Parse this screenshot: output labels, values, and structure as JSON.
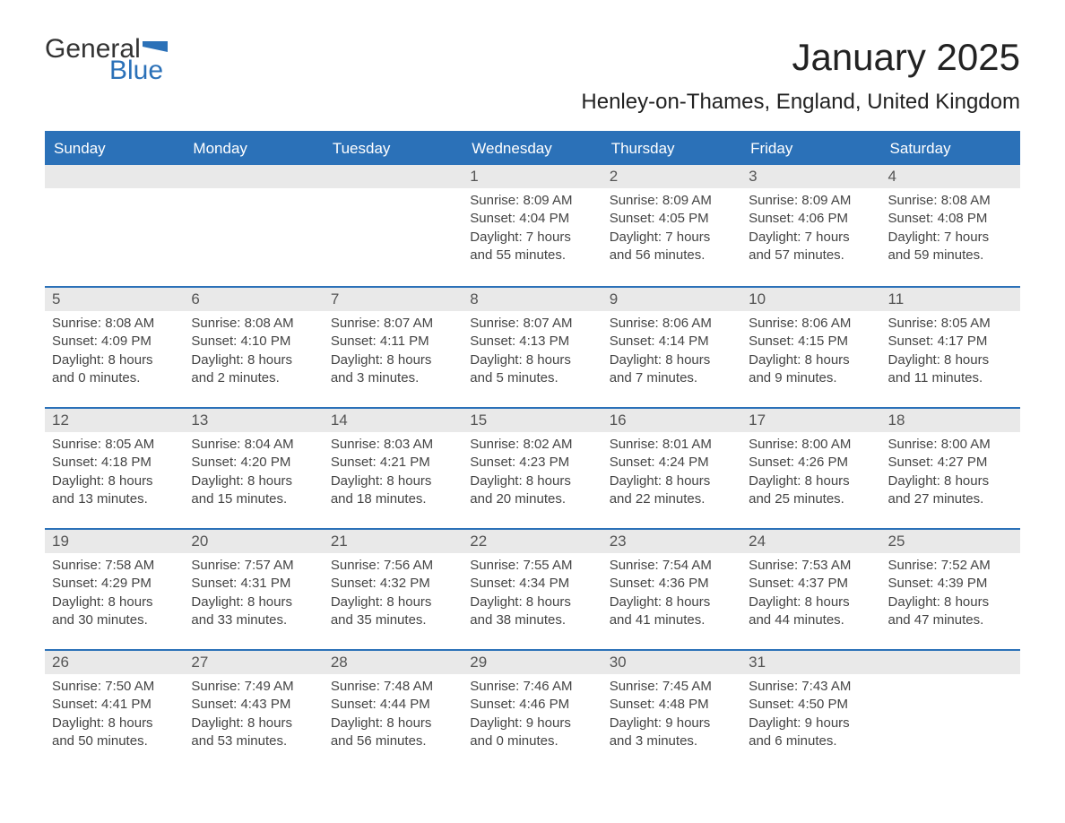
{
  "logo": {
    "general": "General",
    "blue": "Blue",
    "flag_color": "#2b71b8"
  },
  "title": "January 2025",
  "location": "Henley-on-Thames, England, United Kingdom",
  "colors": {
    "header_bg": "#2b71b8",
    "header_text": "#ffffff",
    "daynum_bg": "#e9e9e9",
    "text": "#444444",
    "rule": "#2b71b8"
  },
  "day_names": [
    "Sunday",
    "Monday",
    "Tuesday",
    "Wednesday",
    "Thursday",
    "Friday",
    "Saturday"
  ],
  "weeks": [
    [
      {
        "empty": true
      },
      {
        "empty": true
      },
      {
        "empty": true
      },
      {
        "day": "1",
        "sunrise": "Sunrise: 8:09 AM",
        "sunset": "Sunset: 4:04 PM",
        "daylight1": "Daylight: 7 hours",
        "daylight2": "and 55 minutes."
      },
      {
        "day": "2",
        "sunrise": "Sunrise: 8:09 AM",
        "sunset": "Sunset: 4:05 PM",
        "daylight1": "Daylight: 7 hours",
        "daylight2": "and 56 minutes."
      },
      {
        "day": "3",
        "sunrise": "Sunrise: 8:09 AM",
        "sunset": "Sunset: 4:06 PM",
        "daylight1": "Daylight: 7 hours",
        "daylight2": "and 57 minutes."
      },
      {
        "day": "4",
        "sunrise": "Sunrise: 8:08 AM",
        "sunset": "Sunset: 4:08 PM",
        "daylight1": "Daylight: 7 hours",
        "daylight2": "and 59 minutes."
      }
    ],
    [
      {
        "day": "5",
        "sunrise": "Sunrise: 8:08 AM",
        "sunset": "Sunset: 4:09 PM",
        "daylight1": "Daylight: 8 hours",
        "daylight2": "and 0 minutes."
      },
      {
        "day": "6",
        "sunrise": "Sunrise: 8:08 AM",
        "sunset": "Sunset: 4:10 PM",
        "daylight1": "Daylight: 8 hours",
        "daylight2": "and 2 minutes."
      },
      {
        "day": "7",
        "sunrise": "Sunrise: 8:07 AM",
        "sunset": "Sunset: 4:11 PM",
        "daylight1": "Daylight: 8 hours",
        "daylight2": "and 3 minutes."
      },
      {
        "day": "8",
        "sunrise": "Sunrise: 8:07 AM",
        "sunset": "Sunset: 4:13 PM",
        "daylight1": "Daylight: 8 hours",
        "daylight2": "and 5 minutes."
      },
      {
        "day": "9",
        "sunrise": "Sunrise: 8:06 AM",
        "sunset": "Sunset: 4:14 PM",
        "daylight1": "Daylight: 8 hours",
        "daylight2": "and 7 minutes."
      },
      {
        "day": "10",
        "sunrise": "Sunrise: 8:06 AM",
        "sunset": "Sunset: 4:15 PM",
        "daylight1": "Daylight: 8 hours",
        "daylight2": "and 9 minutes."
      },
      {
        "day": "11",
        "sunrise": "Sunrise: 8:05 AM",
        "sunset": "Sunset: 4:17 PM",
        "daylight1": "Daylight: 8 hours",
        "daylight2": "and 11 minutes."
      }
    ],
    [
      {
        "day": "12",
        "sunrise": "Sunrise: 8:05 AM",
        "sunset": "Sunset: 4:18 PM",
        "daylight1": "Daylight: 8 hours",
        "daylight2": "and 13 minutes."
      },
      {
        "day": "13",
        "sunrise": "Sunrise: 8:04 AM",
        "sunset": "Sunset: 4:20 PM",
        "daylight1": "Daylight: 8 hours",
        "daylight2": "and 15 minutes."
      },
      {
        "day": "14",
        "sunrise": "Sunrise: 8:03 AM",
        "sunset": "Sunset: 4:21 PM",
        "daylight1": "Daylight: 8 hours",
        "daylight2": "and 18 minutes."
      },
      {
        "day": "15",
        "sunrise": "Sunrise: 8:02 AM",
        "sunset": "Sunset: 4:23 PM",
        "daylight1": "Daylight: 8 hours",
        "daylight2": "and 20 minutes."
      },
      {
        "day": "16",
        "sunrise": "Sunrise: 8:01 AM",
        "sunset": "Sunset: 4:24 PM",
        "daylight1": "Daylight: 8 hours",
        "daylight2": "and 22 minutes."
      },
      {
        "day": "17",
        "sunrise": "Sunrise: 8:00 AM",
        "sunset": "Sunset: 4:26 PM",
        "daylight1": "Daylight: 8 hours",
        "daylight2": "and 25 minutes."
      },
      {
        "day": "18",
        "sunrise": "Sunrise: 8:00 AM",
        "sunset": "Sunset: 4:27 PM",
        "daylight1": "Daylight: 8 hours",
        "daylight2": "and 27 minutes."
      }
    ],
    [
      {
        "day": "19",
        "sunrise": "Sunrise: 7:58 AM",
        "sunset": "Sunset: 4:29 PM",
        "daylight1": "Daylight: 8 hours",
        "daylight2": "and 30 minutes."
      },
      {
        "day": "20",
        "sunrise": "Sunrise: 7:57 AM",
        "sunset": "Sunset: 4:31 PM",
        "daylight1": "Daylight: 8 hours",
        "daylight2": "and 33 minutes."
      },
      {
        "day": "21",
        "sunrise": "Sunrise: 7:56 AM",
        "sunset": "Sunset: 4:32 PM",
        "daylight1": "Daylight: 8 hours",
        "daylight2": "and 35 minutes."
      },
      {
        "day": "22",
        "sunrise": "Sunrise: 7:55 AM",
        "sunset": "Sunset: 4:34 PM",
        "daylight1": "Daylight: 8 hours",
        "daylight2": "and 38 minutes."
      },
      {
        "day": "23",
        "sunrise": "Sunrise: 7:54 AM",
        "sunset": "Sunset: 4:36 PM",
        "daylight1": "Daylight: 8 hours",
        "daylight2": "and 41 minutes."
      },
      {
        "day": "24",
        "sunrise": "Sunrise: 7:53 AM",
        "sunset": "Sunset: 4:37 PM",
        "daylight1": "Daylight: 8 hours",
        "daylight2": "and 44 minutes."
      },
      {
        "day": "25",
        "sunrise": "Sunrise: 7:52 AM",
        "sunset": "Sunset: 4:39 PM",
        "daylight1": "Daylight: 8 hours",
        "daylight2": "and 47 minutes."
      }
    ],
    [
      {
        "day": "26",
        "sunrise": "Sunrise: 7:50 AM",
        "sunset": "Sunset: 4:41 PM",
        "daylight1": "Daylight: 8 hours",
        "daylight2": "and 50 minutes."
      },
      {
        "day": "27",
        "sunrise": "Sunrise: 7:49 AM",
        "sunset": "Sunset: 4:43 PM",
        "daylight1": "Daylight: 8 hours",
        "daylight2": "and 53 minutes."
      },
      {
        "day": "28",
        "sunrise": "Sunrise: 7:48 AM",
        "sunset": "Sunset: 4:44 PM",
        "daylight1": "Daylight: 8 hours",
        "daylight2": "and 56 minutes."
      },
      {
        "day": "29",
        "sunrise": "Sunrise: 7:46 AM",
        "sunset": "Sunset: 4:46 PM",
        "daylight1": "Daylight: 9 hours",
        "daylight2": "and 0 minutes."
      },
      {
        "day": "30",
        "sunrise": "Sunrise: 7:45 AM",
        "sunset": "Sunset: 4:48 PM",
        "daylight1": "Daylight: 9 hours",
        "daylight2": "and 3 minutes."
      },
      {
        "day": "31",
        "sunrise": "Sunrise: 7:43 AM",
        "sunset": "Sunset: 4:50 PM",
        "daylight1": "Daylight: 9 hours",
        "daylight2": "and 6 minutes."
      },
      {
        "empty": true
      }
    ]
  ]
}
